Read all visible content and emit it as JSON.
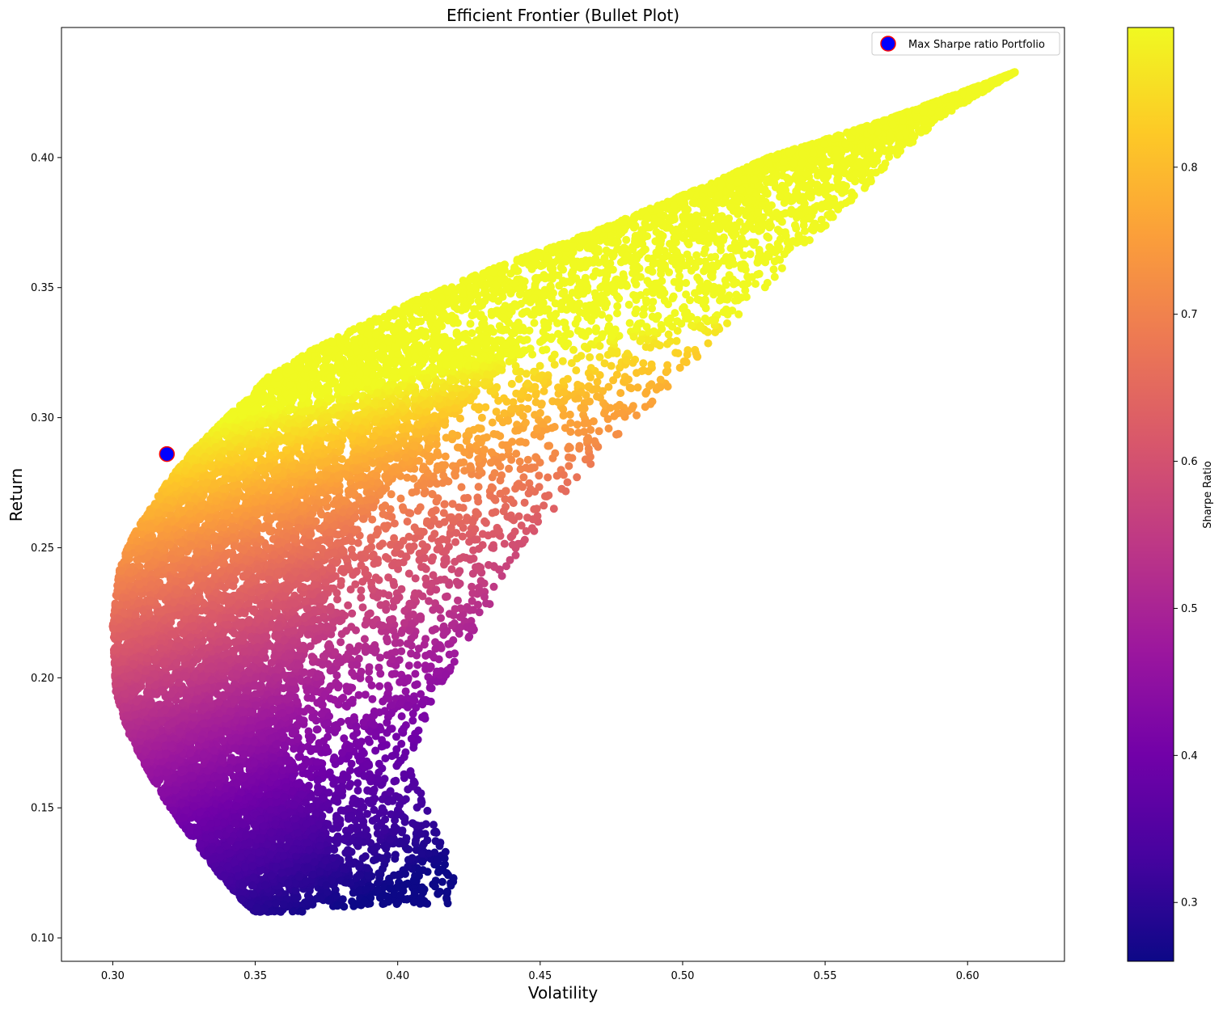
{
  "chart_data": {
    "type": "scatter",
    "title": "Efficient Frontier (Bullet Plot)",
    "xlabel": "Volatility",
    "ylabel": "Return",
    "xlim": [
      0.282,
      0.634
    ],
    "ylim": [
      0.091,
      0.45
    ],
    "x_ticks": [
      0.3,
      0.35,
      0.4,
      0.45,
      0.5,
      0.55,
      0.6
    ],
    "x_tick_labels": [
      "0.30",
      "0.35",
      "0.40",
      "0.45",
      "0.50",
      "0.55",
      "0.60"
    ],
    "y_ticks": [
      0.1,
      0.15,
      0.2,
      0.25,
      0.3,
      0.35,
      0.4
    ],
    "y_tick_labels": [
      "0.10",
      "0.15",
      "0.20",
      "0.25",
      "0.30",
      "0.35",
      "0.40"
    ],
    "grid": false,
    "colormap": "plasma",
    "colorbar": {
      "label": "Sharpe Ratio",
      "range": [
        0.26,
        0.895
      ],
      "ticks": [
        0.3,
        0.4,
        0.5,
        0.6,
        0.7,
        0.8
      ],
      "tick_labels": [
        "0.3",
        "0.4",
        "0.5",
        "0.6",
        "0.7",
        "0.8"
      ]
    },
    "color_stops": [
      "#0d0887",
      "#46039f",
      "#7201a8",
      "#9c179e",
      "#bd3786",
      "#d8576b",
      "#ed7953",
      "#fb9f3a",
      "#fdca26",
      "#f0f921"
    ],
    "legend": {
      "placement": "top-right",
      "entries": [
        {
          "label": "Max Sharpe ratio Portfolio",
          "color": "#0000ff",
          "edge": "#ff0000"
        }
      ]
    },
    "max_sharpe_point": {
      "x": 0.319,
      "y": 0.286
    },
    "frontier_edge": [
      [
        0.3,
        0.22
      ],
      [
        0.302,
        0.24
      ],
      [
        0.306,
        0.253
      ],
      [
        0.312,
        0.263
      ],
      [
        0.319,
        0.275
      ],
      [
        0.328,
        0.287
      ],
      [
        0.34,
        0.3
      ],
      [
        0.355,
        0.316
      ],
      [
        0.37,
        0.326
      ],
      [
        0.39,
        0.337
      ],
      [
        0.41,
        0.347
      ],
      [
        0.43,
        0.356
      ],
      [
        0.45,
        0.364
      ],
      [
        0.47,
        0.372
      ],
      [
        0.49,
        0.381
      ],
      [
        0.51,
        0.39
      ],
      [
        0.53,
        0.4
      ],
      [
        0.55,
        0.407
      ],
      [
        0.57,
        0.414
      ],
      [
        0.59,
        0.422
      ],
      [
        0.605,
        0.428
      ],
      [
        0.617,
        0.433
      ]
    ],
    "lower_boundary": [
      [
        0.3,
        0.22
      ],
      [
        0.301,
        0.195
      ],
      [
        0.305,
        0.18
      ],
      [
        0.312,
        0.165
      ],
      [
        0.32,
        0.15
      ],
      [
        0.328,
        0.138
      ],
      [
        0.337,
        0.125
      ],
      [
        0.345,
        0.115
      ],
      [
        0.35,
        0.11
      ]
    ],
    "outer_boundary": [
      [
        0.352,
        0.112
      ],
      [
        0.37,
        0.11
      ],
      [
        0.395,
        0.113
      ],
      [
        0.418,
        0.112
      ],
      [
        0.42,
        0.125
      ],
      [
        0.41,
        0.15
      ],
      [
        0.405,
        0.17
      ],
      [
        0.41,
        0.185
      ],
      [
        0.417,
        0.2
      ],
      [
        0.425,
        0.215
      ],
      [
        0.435,
        0.232
      ],
      [
        0.445,
        0.25
      ],
      [
        0.457,
        0.268
      ],
      [
        0.47,
        0.285
      ],
      [
        0.487,
        0.303
      ],
      [
        0.505,
        0.322
      ],
      [
        0.522,
        0.342
      ],
      [
        0.54,
        0.362
      ],
      [
        0.558,
        0.382
      ],
      [
        0.575,
        0.4
      ],
      [
        0.59,
        0.415
      ],
      [
        0.617,
        0.433
      ]
    ]
  }
}
